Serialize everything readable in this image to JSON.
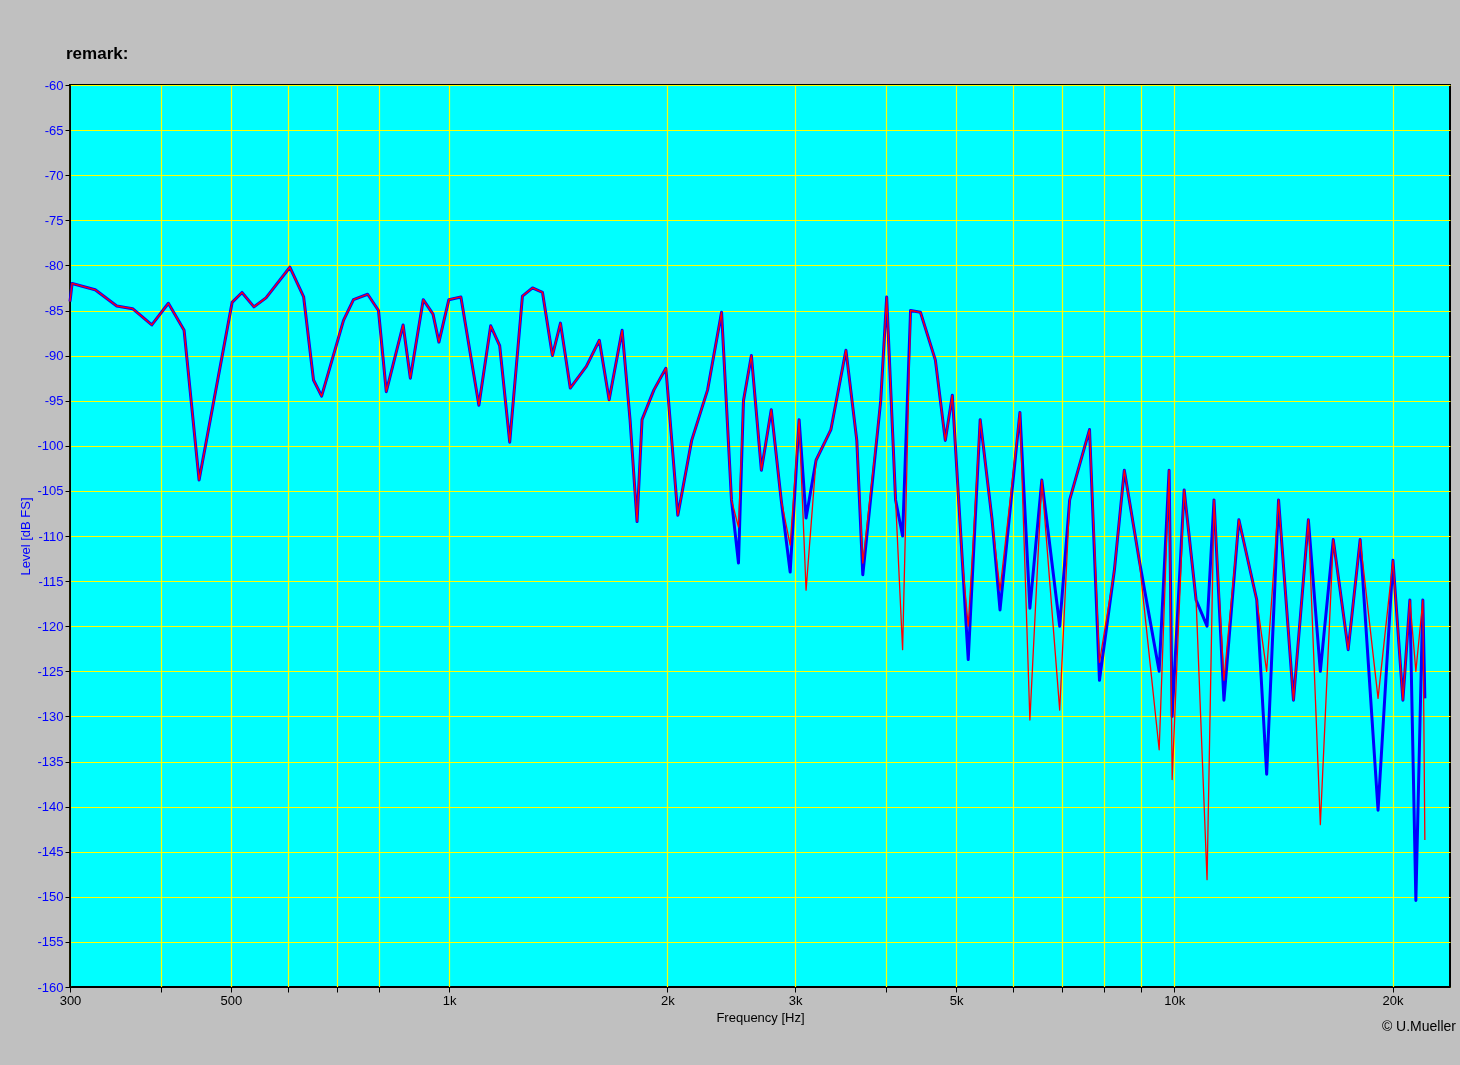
{
  "chart_data": {
    "type": "line",
    "xlabel": "Frequency [Hz]",
    "ylabel": "Level [dB FS]",
    "log": "x",
    "grid": true,
    "line_style": "solid",
    "marker": "none",
    "annotations": [
      "remark:",
      "© U.Mueller"
    ],
    "xlim": [
      300,
      24000
    ],
    "xticks": [
      300,
      {
        "value": 400,
        "label": null
      },
      500,
      {
        "value": 600,
        "label": null
      },
      {
        "value": 700,
        "label": null
      },
      {
        "value": 800,
        "label": null
      },
      {
        "value": 1000,
        "label": "1k"
      },
      {
        "value": 2000,
        "label": "2k"
      },
      {
        "value": 3000,
        "label": "3k"
      },
      {
        "value": 4000,
        "label": null
      },
      {
        "value": 5000,
        "label": "5k"
      },
      {
        "value": 6000,
        "label": null
      },
      {
        "value": 7000,
        "label": null
      },
      {
        "value": 8000,
        "label": null
      },
      {
        "value": 9000,
        "label": null
      },
      {
        "value": 10000,
        "label": "10k"
      },
      {
        "value": 20000,
        "label": "20k"
      }
    ],
    "ylim": [
      -160,
      -60
    ],
    "yticks": [
      -60,
      -65,
      -70,
      -75,
      -80,
      -85,
      -90,
      -95,
      -100,
      -105,
      -110,
      -115,
      -120,
      -125,
      -130,
      -135,
      -140,
      -145,
      -150,
      -155,
      -160
    ],
    "x": [
      300,
      302,
      325,
      348,
      366,
      389,
      410,
      431,
      452,
      502,
      518,
      538,
      559,
      603,
      630,
      650,
      667,
      715,
      738,
      772,
      799,
      819,
      864,
      884,
      921,
      950,
      968,
      999,
      1038,
      1099,
      1141,
      1174,
      1212,
      1262,
      1303,
      1345,
      1388,
      1424,
      1469,
      1546,
      1611,
      1662,
      1732,
      1776,
      1816,
      1845,
      1916,
      1990,
      2067,
      2160,
      2272,
      2375,
      2451,
      2506,
      2546,
      2611,
      2695,
      2781,
      2870,
      2953,
      3038,
      3106,
      3206,
      3361,
      3525,
      3649,
      3719,
      3937,
      4012,
      4127,
      4220,
      4328,
      4466,
      4683,
      4833,
      4942,
      5101,
      5198,
      5399,
      5607,
      5750,
      6125,
      6322,
      6566,
      6950,
      7173,
      7640,
      7885,
      8267,
      8533,
      8947,
      9531,
      9837,
      9932,
      10318,
      10717,
      11096,
      11344,
      11707,
      12276,
      12994,
      13409,
      13925,
      14600,
      15308,
      15900,
      16567,
      17370,
      18043,
      19098,
      20025,
      20666,
      21129,
      21535,
      22017,
      22158
    ],
    "series": [
      {
        "color": "#0000ff",
        "values": [
          -84,
          -82,
          -82.7,
          -84.5,
          -84.8,
          -86.6,
          -84.2,
          -87.2,
          -103.8,
          -84.1,
          -83,
          -84.6,
          -83.6,
          -80.2,
          -83.5,
          -92.7,
          -94.5,
          -86.1,
          -83.8,
          -83.2,
          -85,
          -94,
          -86.6,
          -92.5,
          -83.8,
          -85.4,
          -88.5,
          -83.8,
          -83.5,
          -95.5,
          -86.7,
          -88.9,
          -99.6,
          -83.4,
          -82.5,
          -83,
          -90,
          -86.4,
          -93.6,
          -91.2,
          -88.3,
          -94.9,
          -87.2,
          -97.1,
          -108.4,
          -97.1,
          -93.8,
          -91.4,
          -107.7,
          -99.4,
          -93.8,
          -85.2,
          -106,
          -113,
          -95,
          -90,
          -102.7,
          -96,
          -106,
          -114,
          -97.1,
          -108,
          -101.6,
          -98.2,
          -89.4,
          -99.4,
          -114.3,
          -95,
          -83.5,
          -106,
          -110,
          -85,
          -85.2,
          -90.5,
          -99.4,
          -94.4,
          -112.7,
          -123.7,
          -97.1,
          -108.2,
          -118.2,
          -96.3,
          -118,
          -103.8,
          -120,
          -106,
          -98.2,
          -126,
          -113.8,
          -102.7,
          -112.7,
          -125,
          -102.7,
          -130,
          -104.9,
          -117.1,
          -120,
          -106,
          -128.2,
          -108.2,
          -117.1,
          -136.4,
          -106,
          -128.2,
          -108.2,
          -125,
          -110.4,
          -122.6,
          -110.4,
          -140.4,
          -112.7,
          -128.2,
          -117.1,
          -150.4,
          -117.1,
          -128
        ]
      },
      {
        "color": "#ff0000",
        "values": [
          -84,
          -82,
          -82.7,
          -84.5,
          -84.8,
          -86.6,
          -84.2,
          -87.2,
          -103.8,
          -84.1,
          -83,
          -84.6,
          -83.6,
          -80.2,
          -83.5,
          -92.7,
          -94.5,
          -86.1,
          -83.8,
          -83.2,
          -85,
          -94,
          -86.6,
          -92.5,
          -83.8,
          -85.4,
          -88.5,
          -83.8,
          -83.5,
          -95.5,
          -86.7,
          -88.9,
          -99.6,
          -83.4,
          -82.5,
          -83,
          -90,
          -86.4,
          -93.6,
          -91.2,
          -88.3,
          -94.9,
          -87.2,
          -97.1,
          -108.4,
          -97.1,
          -93.8,
          -91.4,
          -107.7,
          -99.4,
          -93.8,
          -85.2,
          -106,
          -109,
          -95,
          -90,
          -102.7,
          -96,
          -106,
          -111,
          -97.1,
          -116,
          -101.6,
          -98.2,
          -89.4,
          -99.4,
          -113,
          -95,
          -83.5,
          -106,
          -122.6,
          -85,
          -85.2,
          -90.5,
          -99.4,
          -94.4,
          -112.7,
          -120,
          -97.1,
          -108.2,
          -116,
          -96.3,
          -130.4,
          -103.8,
          -129.3,
          -106,
          -98.2,
          -124,
          -113.8,
          -102.7,
          -112.7,
          -133.7,
          -102.7,
          -137,
          -104.9,
          -117.1,
          -148.1,
          -106,
          -126,
          -108.2,
          -117.1,
          -125,
          -106,
          -128.2,
          -108.2,
          -142,
          -110.4,
          -122.6,
          -110.4,
          -128,
          -112.7,
          -128.2,
          -117.1,
          -125,
          -117.1,
          -143.7
        ]
      }
    ]
  }
}
